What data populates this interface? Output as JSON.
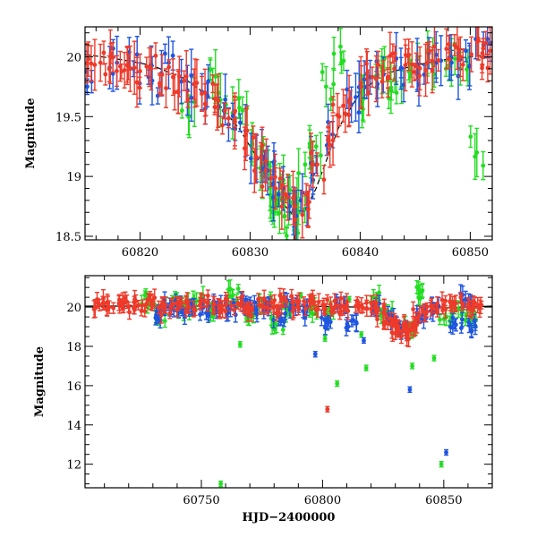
{
  "colors": {
    "green": "#22dd22",
    "blue": "#1f55e0",
    "red": "#ee3a2a",
    "model": "#000000"
  },
  "chart_data": [
    {
      "type": "scatter",
      "title": "",
      "xlabel": "",
      "ylabel": "Magnitude",
      "xlim": [
        60815,
        60852
      ],
      "ylim": [
        20.25,
        18.47
      ],
      "y_inverted": true,
      "x_ticks": [
        60820,
        60830,
        60840,
        60850
      ],
      "y_ticks": [
        18.5,
        19,
        19.5,
        20
      ],
      "y_tick_labels": [
        "18.5",
        "19",
        "19.5",
        "20"
      ],
      "model_curve": {
        "style": "dashed-then-solid",
        "x": [
          60815,
          60818,
          60821,
          60824,
          60827,
          60829,
          60831,
          60832,
          60833,
          60834,
          60835,
          60836,
          60837,
          60838,
          60840,
          60842,
          60845,
          60848,
          60852
        ],
        "y": [
          20.02,
          19.98,
          19.93,
          19.82,
          19.62,
          19.4,
          19.1,
          18.93,
          18.77,
          18.67,
          18.72,
          18.9,
          19.15,
          19.4,
          19.7,
          19.85,
          19.93,
          19.98,
          20.02
        ]
      },
      "series": [
        {
          "color": "green",
          "x": [
            60824.4,
            60826.6,
            60827.8,
            60829.3,
            60830.6,
            60831.3,
            60831.8,
            60832.2,
            60832.7,
            60833.1,
            60833.5,
            60834.0,
            60834.4,
            60835.0,
            60836.0,
            60836.9,
            60838.3,
            60840.3,
            60841.6,
            60842.5,
            60843.3,
            60844.6,
            60846.1,
            60847.8,
            60849.1,
            60850.6
          ],
          "y": [
            19.5,
            19.78,
            19.6,
            19.55,
            19.15,
            19.1,
            18.9,
            18.7,
            18.95,
            18.8,
            18.8,
            18.55,
            18.7,
            19.1,
            19.25,
            19.75,
            19.95,
            19.65,
            19.85,
            19.8,
            19.7,
            19.9,
            19.95,
            19.9,
            19.9,
            19.2
          ]
        },
        {
          "color": "blue",
          "x": [
            60815.2,
            60817.9,
            60819.4,
            60821.1,
            60822.6,
            60824.3,
            60826.1,
            60827.6,
            60829.1,
            60830.6,
            60831.6,
            60832.6,
            60833.6,
            60834.6,
            60836.0,
            60837.5,
            60839.2,
            60840.6,
            60842.1,
            60843.7,
            60845.2,
            60846.9,
            60848.3,
            60849.6,
            60851.2
          ],
          "y": [
            19.75,
            19.95,
            19.9,
            19.8,
            19.95,
            19.72,
            19.68,
            19.55,
            19.45,
            19.15,
            19.05,
            18.85,
            18.75,
            18.8,
            19.1,
            19.35,
            19.6,
            19.75,
            19.85,
            19.9,
            19.85,
            19.95,
            19.95,
            20.05,
            20.1
          ]
        },
        {
          "color": "red",
          "x": [
            60815.3,
            60816.4,
            60817.3,
            60818.2,
            60819.1,
            60820.0,
            60821.0,
            60822.0,
            60823.0,
            60824.0,
            60825.0,
            60825.9,
            60826.8,
            60827.7,
            60828.6,
            60829.6,
            60830.5,
            60831.4,
            60832.3,
            60833.2,
            60834.1,
            60835.1,
            60836.1,
            60837.1,
            60838.1,
            60839.1,
            60840.1,
            60841.1,
            60842.1,
            60843.1,
            60844.1,
            60845.1,
            60846.1,
            60847.1,
            60848.1,
            60849.1,
            60850.1,
            60851.1,
            60851.8
          ],
          "y": [
            19.98,
            19.95,
            20.0,
            19.92,
            19.9,
            19.88,
            19.9,
            19.85,
            19.83,
            19.8,
            19.78,
            19.7,
            19.65,
            19.55,
            19.45,
            19.35,
            19.15,
            19.05,
            18.9,
            18.85,
            18.75,
            18.85,
            19.1,
            19.3,
            19.5,
            19.65,
            19.75,
            19.83,
            19.88,
            19.9,
            19.93,
            19.92,
            19.95,
            19.97,
            19.98,
            20.0,
            20.02,
            20.03,
            20.05
          ]
        }
      ]
    },
    {
      "type": "scatter",
      "title": "",
      "xlabel": "HJD−2400000",
      "ylabel": "Magnitude",
      "xlim": [
        60702,
        60870
      ],
      "ylim": [
        21.6,
        10.8
      ],
      "y_inverted": true,
      "x_ticks": [
        60750,
        60800,
        60850
      ],
      "y_ticks": [
        12,
        14,
        16,
        18,
        20
      ],
      "y_tick_labels": [
        "12",
        "14",
        "16",
        "18",
        "20"
      ],
      "model_curve": {
        "style": "solid",
        "x": [
          60702,
          60790,
          60815,
          60825,
          60830,
          60833,
          60835,
          60837,
          60840,
          60848,
          60870
        ],
        "y": [
          20.05,
          20.05,
          20.0,
          19.85,
          19.4,
          18.95,
          18.75,
          19.1,
          19.6,
          19.95,
          20.05
        ]
      },
      "series": [
        {
          "color": "green",
          "x": [
            60728,
            60733,
            60738,
            60743,
            60748,
            60753,
            60758,
            60763,
            60766,
            60771,
            60776,
            60781,
            60786,
            60791,
            60796,
            60801,
            60803,
            60806,
            60811,
            60816,
            60818,
            60821,
            60826,
            60831,
            60836,
            60837,
            60841,
            60846,
            60849,
            60851,
            60856,
            60861
          ],
          "y": [
            20.4,
            19.6,
            20.2,
            20.0,
            20.3,
            19.8,
            11.0,
            20.6,
            18.1,
            19.7,
            20.3,
            19.1,
            19.9,
            20.6,
            20.0,
            18.4,
            19.6,
            16.1,
            20.4,
            18.6,
            16.9,
            20.5,
            19.7,
            18.6,
            19.0,
            17.0,
            20.8,
            17.4,
            12.0,
            19.5,
            19.9,
            19.5
          ],
          "outlier_indices": [
            6,
            8,
            13,
            15,
            18,
            19,
            23,
            25,
            27,
            28
          ]
        },
        {
          "color": "blue",
          "x": [
            60732,
            60737,
            60742,
            60747,
            60752,
            60757,
            60762,
            60767,
            60772,
            60777,
            60782,
            60787,
            60792,
            60797,
            60802,
            60807,
            60812,
            60817,
            60822,
            60827,
            60832,
            60836,
            60841,
            60846,
            60851,
            60855,
            60859,
            60863
          ],
          "y": [
            19.6,
            20.0,
            19.8,
            20.0,
            19.7,
            20.1,
            19.9,
            20.2,
            19.9,
            20.0,
            19.5,
            20.1,
            19.8,
            17.6,
            19.2,
            20.1,
            19.3,
            18.3,
            20.0,
            19.4,
            18.9,
            15.8,
            19.6,
            20.0,
            12.6,
            19.1,
            20.4,
            19.0
          ]
        },
        {
          "color": "red",
          "x": [
            60708,
            60712,
            60716,
            60720,
            60724,
            60730,
            60735,
            60740,
            60745,
            60750,
            60755,
            60760,
            60765,
            60770,
            60775,
            60780,
            60785,
            60790,
            60795,
            60800,
            60802,
            60805,
            60810,
            60815,
            60820,
            60825,
            60828,
            60831,
            60833,
            60835,
            60837,
            60840,
            60845,
            60850,
            60855,
            60860,
            60864
          ],
          "y": [
            20.1,
            20.0,
            20.2,
            20.0,
            20.1,
            20.3,
            19.9,
            20.2,
            20.0,
            20.3,
            19.9,
            20.1,
            20.2,
            19.9,
            20.1,
            20.0,
            20.3,
            20.0,
            20.2,
            20.1,
            14.8,
            20.0,
            20.1,
            20.0,
            19.9,
            19.7,
            19.4,
            19.0,
            18.8,
            18.7,
            19.0,
            19.6,
            20.0,
            20.1,
            20.2,
            20.0,
            20.1
          ]
        }
      ]
    }
  ]
}
